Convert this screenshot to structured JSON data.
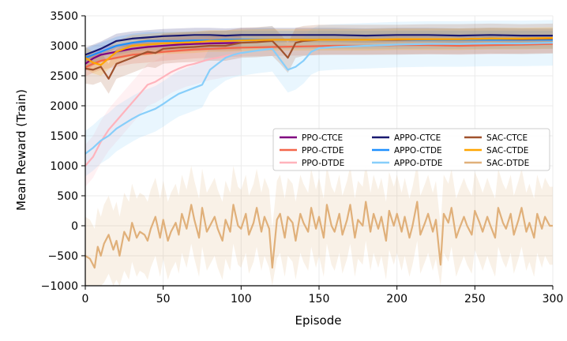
{
  "chart_data": {
    "type": "line",
    "title": "",
    "xlabel": "Episode",
    "ylabel": "Mean Reward (Train)",
    "xlim": [
      0,
      300
    ],
    "ylim": [
      -1000,
      3500
    ],
    "xticks": [
      0,
      50,
      100,
      150,
      200,
      250,
      300
    ],
    "yticks": [
      -1000,
      -500,
      0,
      500,
      1000,
      1500,
      2000,
      2500,
      3000,
      3500
    ],
    "grid": true,
    "shaded_bands": true,
    "legend_position": "center-right",
    "legend_columns": 3,
    "series": [
      {
        "name": "PPO-CTCE",
        "color": "#800080",
        "band": 120,
        "points": [
          [
            0,
            2700
          ],
          [
            5,
            2790
          ],
          [
            10,
            2850
          ],
          [
            20,
            2900
          ],
          [
            30,
            2950
          ],
          [
            40,
            2980
          ],
          [
            50,
            3000
          ],
          [
            60,
            3020
          ],
          [
            70,
            3030
          ],
          [
            80,
            3040
          ],
          [
            90,
            3045
          ],
          [
            100,
            3050
          ]
        ]
      },
      {
        "name": "PPO-CTDE",
        "color": "#f4664a",
        "band": 150,
        "points": [
          [
            0,
            2640
          ],
          [
            5,
            2700
          ],
          [
            10,
            2750
          ],
          [
            20,
            2800
          ],
          [
            30,
            2850
          ],
          [
            40,
            2870
          ],
          [
            50,
            2900
          ],
          [
            60,
            2920
          ],
          [
            70,
            2940
          ],
          [
            80,
            2950
          ],
          [
            90,
            2960
          ],
          [
            100,
            2970
          ],
          [
            120,
            2980
          ],
          [
            140,
            2990
          ],
          [
            160,
            3000
          ],
          [
            180,
            3000
          ],
          [
            200,
            3010
          ],
          [
            220,
            3010
          ],
          [
            240,
            3000
          ],
          [
            260,
            3010
          ],
          [
            280,
            3020
          ],
          [
            300,
            3030
          ]
        ]
      },
      {
        "name": "PPO-DTDE",
        "color": "#ffb3bc",
        "band": 350,
        "points": [
          [
            0,
            1000
          ],
          [
            5,
            1150
          ],
          [
            10,
            1400
          ],
          [
            15,
            1600
          ],
          [
            20,
            1750
          ],
          [
            25,
            1900
          ],
          [
            30,
            2050
          ],
          [
            35,
            2200
          ],
          [
            40,
            2350
          ],
          [
            45,
            2400
          ],
          [
            50,
            2480
          ],
          [
            55,
            2560
          ],
          [
            60,
            2620
          ],
          [
            65,
            2670
          ],
          [
            70,
            2700
          ],
          [
            75,
            2740
          ],
          [
            80,
            2780
          ],
          [
            85,
            2800
          ],
          [
            90,
            2830
          ],
          [
            95,
            2850
          ],
          [
            100,
            2870
          ]
        ]
      },
      {
        "name": "APPO-CTCE",
        "color": "#191970",
        "band": 120,
        "points": [
          [
            0,
            2850
          ],
          [
            5,
            2900
          ],
          [
            10,
            2950
          ],
          [
            20,
            3080
          ],
          [
            30,
            3120
          ],
          [
            40,
            3140
          ],
          [
            50,
            3160
          ],
          [
            60,
            3170
          ],
          [
            70,
            3180
          ],
          [
            80,
            3180
          ],
          [
            90,
            3170
          ],
          [
            100,
            3180
          ],
          [
            120,
            3180
          ],
          [
            140,
            3180
          ],
          [
            160,
            3180
          ],
          [
            180,
            3170
          ],
          [
            200,
            3180
          ],
          [
            220,
            3180
          ],
          [
            240,
            3170
          ],
          [
            260,
            3180
          ],
          [
            280,
            3170
          ],
          [
            300,
            3170
          ]
        ]
      },
      {
        "name": "APPO-CTDE",
        "color": "#1e90ff",
        "band": 150,
        "points": [
          [
            0,
            2800
          ],
          [
            5,
            2850
          ],
          [
            10,
            2900
          ],
          [
            20,
            3000
          ],
          [
            30,
            3050
          ],
          [
            40,
            3080
          ],
          [
            50,
            3080
          ],
          [
            60,
            3080
          ],
          [
            70,
            3090
          ],
          [
            80,
            3090
          ],
          [
            90,
            3100
          ],
          [
            100,
            3100
          ],
          [
            120,
            3100
          ],
          [
            140,
            3100
          ],
          [
            160,
            3100
          ],
          [
            180,
            3100
          ],
          [
            200,
            3100
          ],
          [
            220,
            3100
          ],
          [
            240,
            3100
          ],
          [
            260,
            3100
          ],
          [
            280,
            3100
          ],
          [
            300,
            3100
          ]
        ]
      },
      {
        "name": "APPO-DTDE",
        "color": "#87cefa",
        "band": 380,
        "points": [
          [
            0,
            1200
          ],
          [
            5,
            1300
          ],
          [
            10,
            1420
          ],
          [
            15,
            1500
          ],
          [
            20,
            1620
          ],
          [
            25,
            1700
          ],
          [
            30,
            1780
          ],
          [
            35,
            1850
          ],
          [
            40,
            1900
          ],
          [
            45,
            1950
          ],
          [
            50,
            2030
          ],
          [
            55,
            2120
          ],
          [
            60,
            2200
          ],
          [
            65,
            2250
          ],
          [
            70,
            2300
          ],
          [
            75,
            2350
          ],
          [
            80,
            2600
          ],
          [
            85,
            2700
          ],
          [
            90,
            2800
          ],
          [
            95,
            2850
          ],
          [
            100,
            2880
          ],
          [
            110,
            2920
          ],
          [
            120,
            2950
          ],
          [
            130,
            2600
          ],
          [
            135,
            2650
          ],
          [
            140,
            2750
          ],
          [
            145,
            2900
          ],
          [
            150,
            2960
          ],
          [
            160,
            2980
          ],
          [
            180,
            3000
          ],
          [
            200,
            3020
          ],
          [
            220,
            3030
          ],
          [
            240,
            3030
          ],
          [
            260,
            3040
          ],
          [
            280,
            3040
          ],
          [
            300,
            3050
          ]
        ]
      },
      {
        "name": "SAC-CTCE",
        "color": "#a0522d",
        "band": 250,
        "points": [
          [
            0,
            2620
          ],
          [
            5,
            2600
          ],
          [
            10,
            2650
          ],
          [
            15,
            2450
          ],
          [
            20,
            2700
          ],
          [
            25,
            2750
          ],
          [
            30,
            2800
          ],
          [
            35,
            2850
          ],
          [
            40,
            2900
          ],
          [
            45,
            2880
          ],
          [
            50,
            2950
          ],
          [
            60,
            2970
          ],
          [
            70,
            2980
          ],
          [
            80,
            3000
          ],
          [
            90,
            3000
          ],
          [
            100,
            3050
          ],
          [
            110,
            3060
          ],
          [
            120,
            3080
          ],
          [
            125,
            2950
          ],
          [
            130,
            2800
          ],
          [
            135,
            3050
          ],
          [
            140,
            3080
          ],
          [
            150,
            3100
          ],
          [
            160,
            3100
          ],
          [
            180,
            3100
          ],
          [
            200,
            3100
          ],
          [
            220,
            3110
          ],
          [
            240,
            3110
          ],
          [
            260,
            3120
          ],
          [
            280,
            3110
          ],
          [
            300,
            3120
          ]
        ]
      },
      {
        "name": "SAC-CTDE",
        "color": "#ffa500",
        "band": 180,
        "points": [
          [
            0,
            2800
          ],
          [
            5,
            2720
          ],
          [
            10,
            2680
          ],
          [
            20,
            2900
          ],
          [
            30,
            3000
          ],
          [
            40,
            3020
          ],
          [
            50,
            3040
          ],
          [
            60,
            3050
          ],
          [
            70,
            3060
          ],
          [
            80,
            3080
          ],
          [
            90,
            3080
          ],
          [
            100,
            3090
          ],
          [
            120,
            3100
          ],
          [
            140,
            3100
          ],
          [
            160,
            3100
          ],
          [
            180,
            3100
          ],
          [
            200,
            3110
          ],
          [
            220,
            3110
          ],
          [
            240,
            3110
          ],
          [
            260,
            3120
          ],
          [
            280,
            3120
          ],
          [
            300,
            3130
          ]
        ]
      },
      {
        "name": "SAC-DTDE",
        "color": "#e0b07a",
        "band": 650,
        "points": [
          [
            0,
            -500
          ],
          [
            3,
            -550
          ],
          [
            6,
            -700
          ],
          [
            8,
            -350
          ],
          [
            10,
            -500
          ],
          [
            12,
            -300
          ],
          [
            15,
            -150
          ],
          [
            18,
            -400
          ],
          [
            20,
            -250
          ],
          [
            22,
            -500
          ],
          [
            25,
            -100
          ],
          [
            28,
            -250
          ],
          [
            30,
            50
          ],
          [
            33,
            -200
          ],
          [
            35,
            -100
          ],
          [
            38,
            -150
          ],
          [
            40,
            -250
          ],
          [
            42,
            -50
          ],
          [
            45,
            150
          ],
          [
            48,
            -200
          ],
          [
            50,
            100
          ],
          [
            53,
            -250
          ],
          [
            55,
            -100
          ],
          [
            58,
            50
          ],
          [
            60,
            -150
          ],
          [
            62,
            200
          ],
          [
            65,
            -50
          ],
          [
            68,
            350
          ],
          [
            70,
            100
          ],
          [
            73,
            -200
          ],
          [
            75,
            300
          ],
          [
            78,
            -100
          ],
          [
            80,
            0
          ],
          [
            83,
            150
          ],
          [
            85,
            -50
          ],
          [
            88,
            -250
          ],
          [
            90,
            100
          ],
          [
            93,
            -100
          ],
          [
            95,
            350
          ],
          [
            98,
            0
          ],
          [
            100,
            -50
          ],
          [
            103,
            200
          ],
          [
            105,
            -150
          ],
          [
            108,
            50
          ],
          [
            110,
            300
          ],
          [
            113,
            -100
          ],
          [
            115,
            150
          ],
          [
            118,
            -50
          ],
          [
            120,
            -700
          ],
          [
            123,
            100
          ],
          [
            125,
            200
          ],
          [
            128,
            -200
          ],
          [
            130,
            150
          ],
          [
            133,
            50
          ],
          [
            135,
            -250
          ],
          [
            138,
            200
          ],
          [
            140,
            50
          ],
          [
            143,
            -100
          ],
          [
            145,
            300
          ],
          [
            148,
            -50
          ],
          [
            150,
            150
          ],
          [
            153,
            -200
          ],
          [
            155,
            350
          ],
          [
            158,
            0
          ],
          [
            160,
            -100
          ],
          [
            163,
            200
          ],
          [
            165,
            -150
          ],
          [
            168,
            100
          ],
          [
            170,
            350
          ],
          [
            173,
            -200
          ],
          [
            175,
            100
          ],
          [
            178,
            0
          ],
          [
            180,
            400
          ],
          [
            183,
            -100
          ],
          [
            185,
            200
          ],
          [
            188,
            -50
          ],
          [
            190,
            150
          ],
          [
            193,
            -250
          ],
          [
            195,
            250
          ],
          [
            198,
            0
          ],
          [
            200,
            200
          ],
          [
            203,
            -100
          ],
          [
            205,
            150
          ],
          [
            208,
            -200
          ],
          [
            210,
            0
          ],
          [
            213,
            400
          ],
          [
            215,
            -150
          ],
          [
            218,
            50
          ],
          [
            220,
            200
          ],
          [
            223,
            -100
          ],
          [
            225,
            100
          ],
          [
            228,
            -650
          ],
          [
            230,
            200
          ],
          [
            233,
            50
          ],
          [
            235,
            300
          ],
          [
            238,
            -200
          ],
          [
            240,
            -50
          ],
          [
            243,
            150
          ],
          [
            245,
            0
          ],
          [
            248,
            -150
          ],
          [
            250,
            250
          ],
          [
            253,
            50
          ],
          [
            255,
            -100
          ],
          [
            258,
            150
          ],
          [
            260,
            0
          ],
          [
            263,
            -200
          ],
          [
            265,
            300
          ],
          [
            268,
            50
          ],
          [
            270,
            -50
          ],
          [
            273,
            200
          ],
          [
            275,
            -150
          ],
          [
            278,
            100
          ],
          [
            280,
            300
          ],
          [
            283,
            -100
          ],
          [
            285,
            50
          ],
          [
            288,
            -200
          ],
          [
            290,
            200
          ],
          [
            293,
            -50
          ],
          [
            295,
            150
          ],
          [
            298,
            0
          ],
          [
            300,
            0
          ]
        ]
      }
    ]
  }
}
